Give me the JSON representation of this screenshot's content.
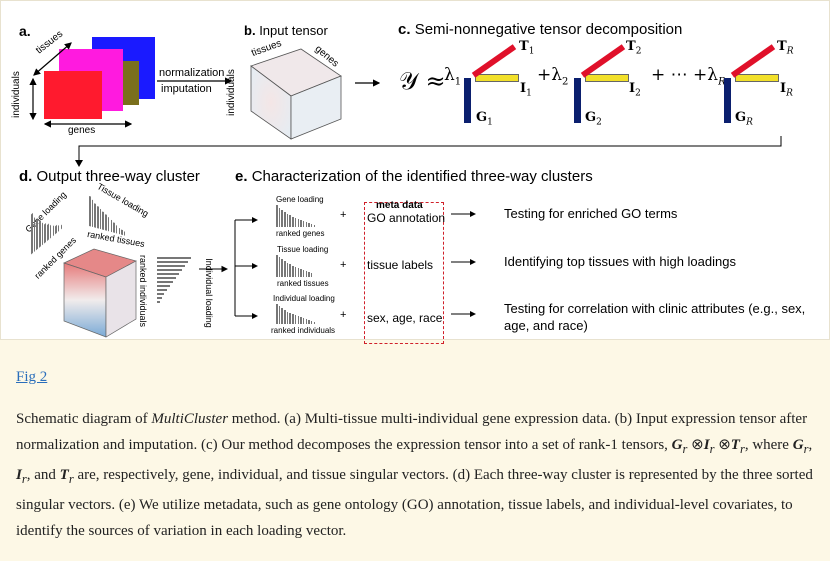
{
  "panels": {
    "a": {
      "letter": "a.",
      "tissues": "tissues",
      "individuals": "individuals",
      "genes": "genes",
      "normalization": "normalization",
      "imputation": "imputation",
      "colors": [
        "#ff1a2e",
        "#ff1adf",
        "#1a1aff",
        "#7a6f1c"
      ]
    },
    "b": {
      "letter": "b.",
      "title": "Input tensor",
      "tissues": "tissues",
      "genes": "genes",
      "individuals": "individuals"
    },
    "c": {
      "letter": "c.",
      "title": "Semi-nonnegative tensor decomposition",
      "lhs": "𝒴 ≈",
      "l1": "λ",
      "l1_sub": "1",
      "plus_l2": "+λ",
      "l2_sub": "2",
      "plus_dots": "+ ⋯ +λ",
      "lR_sub": "R",
      "T1": "T",
      "T1_sub": "1",
      "I1": "I",
      "I1_sub": "1",
      "G1": "G",
      "G1_sub": "1",
      "T2": "T",
      "T2_sub": "2",
      "I2": "I",
      "I2_sub": "2",
      "G2": "G",
      "G2_sub": "2",
      "TR": "T",
      "TR_sub": "R",
      "IR": "I",
      "IR_sub": "R",
      "GR": "G",
      "GR_sub": "R",
      "colors": {
        "T": "#e0102a",
        "I": "#f2e02a",
        "G": "#0b1f6e"
      }
    },
    "d": {
      "letter": "d.",
      "title": "Output three-way cluster",
      "gene_loading": "Gene loading",
      "tissue_loading": "Tissue loading",
      "ranked_genes": "ranked genes",
      "ranked_tissues": "ranked tissues",
      "ranked_individuals": "ranked individuals",
      "individual_loading": "Individual loading"
    },
    "e": {
      "letter": "e.",
      "title": "Characterization of the identified three-way clusters",
      "rows": [
        {
          "small_title": "Gene loading",
          "small_axis": "ranked genes",
          "meta": "GO annotation",
          "result": "Testing for enriched GO terms"
        },
        {
          "small_title": "Tissue loading",
          "small_axis": "ranked tissues",
          "meta": "tissue labels",
          "result": "Identifying top tissues with high loadings"
        },
        {
          "small_title": "Individual loading",
          "small_axis": "ranked individuals",
          "meta": "sex, age, race",
          "result": "Testing for correlation with clinic attributes (e.g., sex,",
          "result2": "age, and race)"
        }
      ],
      "meta_header": "meta data",
      "plus": "+"
    }
  },
  "fig_link": "Fig 2",
  "caption": {
    "p1": "Schematic diagram of ",
    "method": "MultiCluster",
    "p2": " method. (a) Multi-tissue multi-individual gene expression data. (b) Input expression tensor after normalization and imputation. (c) Our method decomposes the expression tensor into a set of rank-1 tensors, ",
    "p3": ", where ",
    "p4": ", and ",
    "p5": " are, respectively, gene, individual, and tissue singular vectors. (d) Each three-way cluster is represented by the three sorted singular vectors. (e) We utilize metadata, such as gene ontology (GO) annotation, tissue labels, and individual-level covariates, to identify the sources of variation in each loading vector."
  }
}
